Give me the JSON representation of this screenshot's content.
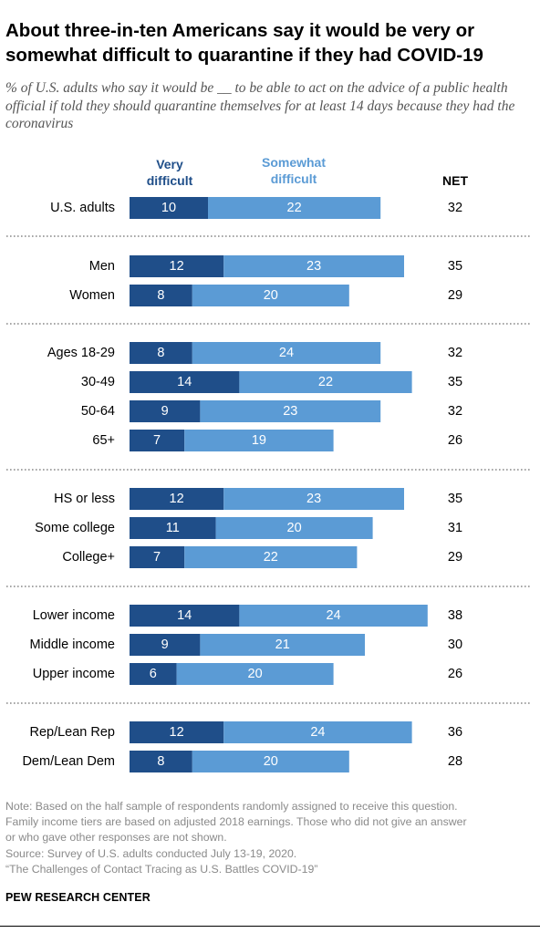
{
  "title": "About three-in-ten Americans say it would be very or somewhat difficult to quarantine if they had COVID-19",
  "subtitle": "% of U.S. adults who say it would be __ to be able to act on the advice of a public health official if told they should quarantine themselves for at least 14 days because they had the coronavirus",
  "colors": {
    "very": "#1f4e89",
    "somewhat": "#5b9bd5",
    "divider": "#888888",
    "note": "#8a8a8a"
  },
  "chart_data": {
    "type": "bar",
    "stacked": true,
    "orientation": "horizontal",
    "series": [
      {
        "name": "Very difficult",
        "values": [
          10,
          12,
          8,
          8,
          14,
          9,
          7,
          12,
          11,
          7,
          14,
          9,
          6,
          12,
          8
        ]
      },
      {
        "name": "Somewhat difficult",
        "values": [
          22,
          23,
          20,
          24,
          22,
          23,
          19,
          23,
          20,
          22,
          24,
          21,
          20,
          24,
          20
        ]
      }
    ],
    "net_label": "NET",
    "groups": [
      {
        "rows": [
          {
            "label": "U.S. adults",
            "very": 10,
            "somewhat": 22,
            "net": 32
          }
        ]
      },
      {
        "rows": [
          {
            "label": "Men",
            "very": 12,
            "somewhat": 23,
            "net": 35
          },
          {
            "label": "Women",
            "very": 8,
            "somewhat": 20,
            "net": 29
          }
        ]
      },
      {
        "rows": [
          {
            "label": "Ages 18-29",
            "very": 8,
            "somewhat": 24,
            "net": 32
          },
          {
            "label": "30-49",
            "very": 14,
            "somewhat": 22,
            "net": 35
          },
          {
            "label": "50-64",
            "very": 9,
            "somewhat": 23,
            "net": 32
          },
          {
            "label": "65+",
            "very": 7,
            "somewhat": 19,
            "net": 26
          }
        ]
      },
      {
        "rows": [
          {
            "label": "HS or less",
            "very": 12,
            "somewhat": 23,
            "net": 35
          },
          {
            "label": "Some college",
            "very": 11,
            "somewhat": 20,
            "net": 31
          },
          {
            "label": "College+",
            "very": 7,
            "somewhat": 22,
            "net": 29
          }
        ]
      },
      {
        "rows": [
          {
            "label": "Lower income",
            "very": 14,
            "somewhat": 24,
            "net": 38
          },
          {
            "label": "Middle income",
            "very": 9,
            "somewhat": 21,
            "net": 30
          },
          {
            "label": "Upper income",
            "very": 6,
            "somewhat": 20,
            "net": 26
          }
        ]
      },
      {
        "rows": [
          {
            "label": "Rep/Lean Rep",
            "very": 12,
            "somewhat": 24,
            "net": 36
          },
          {
            "label": "Dem/Lean Dem",
            "very": 8,
            "somewhat": 20,
            "net": 28
          }
        ]
      }
    ]
  },
  "notes": {
    "lines": [
      "Note: Based on the half sample of respondents randomly assigned to receive this question.",
      "Family income tiers are based on adjusted 2018 earnings. Those who did not give an answer",
      "or who gave other responses are not shown."
    ],
    "source": "Source: Survey of U.S. adults conducted July 13-19, 2020.",
    "report": "“The Challenges of Contact Tracing as U.S. Battles COVID-19”"
  },
  "brand": "PEW RESEARCH CENTER"
}
